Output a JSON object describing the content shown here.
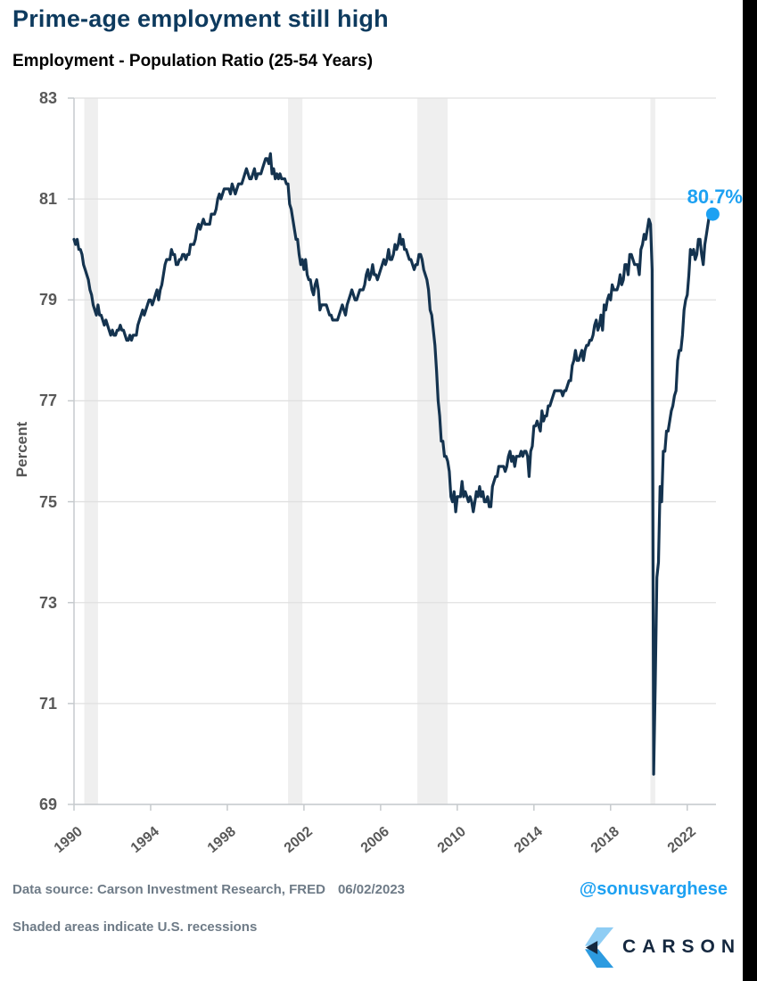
{
  "header": {
    "title": "Prime-age employment still high",
    "subtitle": "Employment - Population Ratio (25-54 Years)"
  },
  "chart_data": {
    "type": "line",
    "title": "Employment - Population Ratio (25-54 Years)",
    "xlabel": "",
    "ylabel": "Percent",
    "ylim": [
      69,
      83
    ],
    "xlim": [
      1990,
      2023.5
    ],
    "y_ticks": [
      69,
      71,
      73,
      75,
      77,
      79,
      81,
      83
    ],
    "x_ticks": [
      1990,
      1994,
      1998,
      2002,
      2006,
      2010,
      2014,
      2018,
      2022
    ],
    "grid": true,
    "legend": false,
    "series_name": "Employment - Population Ratio (25-54 Years), percent, monthly",
    "start_year": 1990,
    "frequency": "monthly",
    "values": [
      80.2,
      80.1,
      80.2,
      80.0,
      80.0,
      79.9,
      79.7,
      79.6,
      79.5,
      79.4,
      79.2,
      79.1,
      78.9,
      78.8,
      78.7,
      78.9,
      78.7,
      78.7,
      78.6,
      78.5,
      78.6,
      78.5,
      78.4,
      78.3,
      78.4,
      78.3,
      78.3,
      78.4,
      78.4,
      78.5,
      78.4,
      78.4,
      78.3,
      78.2,
      78.2,
      78.3,
      78.2,
      78.3,
      78.3,
      78.3,
      78.5,
      78.6,
      78.7,
      78.8,
      78.7,
      78.8,
      78.9,
      79.0,
      79.0,
      78.9,
      79.0,
      79.1,
      79.2,
      79.0,
      79.2,
      79.3,
      79.5,
      79.7,
      79.8,
      79.8,
      79.8,
      80.0,
      79.9,
      79.9,
      79.7,
      79.7,
      79.8,
      79.8,
      79.9,
      79.9,
      79.8,
      79.9,
      79.9,
      80.1,
      80.1,
      80.1,
      80.2,
      80.4,
      80.5,
      80.4,
      80.5,
      80.6,
      80.5,
      80.5,
      80.5,
      80.5,
      80.7,
      80.7,
      80.7,
      80.8,
      81.0,
      81.1,
      81.0,
      81.1,
      81.2,
      81.2,
      81.2,
      81.2,
      81.1,
      81.3,
      81.2,
      81.1,
      81.2,
      81.3,
      81.3,
      81.3,
      81.4,
      81.5,
      81.6,
      81.5,
      81.4,
      81.4,
      81.5,
      81.6,
      81.4,
      81.5,
      81.5,
      81.5,
      81.6,
      81.7,
      81.8,
      81.8,
      81.7,
      81.9,
      81.5,
      81.6,
      81.4,
      81.5,
      81.4,
      81.5,
      81.4,
      81.4,
      81.4,
      81.3,
      81.3,
      80.9,
      80.8,
      80.6,
      80.4,
      80.2,
      80.2,
      79.9,
      79.7,
      79.8,
      79.6,
      79.8,
      79.5,
      79.4,
      79.4,
      79.2,
      79.1,
      79.3,
      79.4,
      79.2,
      78.8,
      78.9,
      78.9,
      78.9,
      78.9,
      78.8,
      78.7,
      78.7,
      78.6,
      78.6,
      78.6,
      78.6,
      78.7,
      78.8,
      78.9,
      78.8,
      78.7,
      78.9,
      79.0,
      79.1,
      79.2,
      79.1,
      79.0,
      79.0,
      79.1,
      79.2,
      79.2,
      79.2,
      79.3,
      79.5,
      79.6,
      79.4,
      79.5,
      79.7,
      79.5,
      79.5,
      79.4,
      79.5,
      79.6,
      79.7,
      79.8,
      79.7,
      79.8,
      80.0,
      79.8,
      79.8,
      79.9,
      80.1,
      80.0,
      80.1,
      80.3,
      80.1,
      80.2,
      80.0,
      80.0,
      79.9,
      79.8,
      79.8,
      79.7,
      79.6,
      79.7,
      79.7,
      79.9,
      79.9,
      79.8,
      79.6,
      79.5,
      79.4,
      79.2,
      78.8,
      78.7,
      78.4,
      78.1,
      77.6,
      77.0,
      76.7,
      76.2,
      76.2,
      75.9,
      75.9,
      75.8,
      75.6,
      75.1,
      75.0,
      75.2,
      74.8,
      75.1,
      75.1,
      75.1,
      75.4,
      75.1,
      75.2,
      75.1,
      75.0,
      75.1,
      75.0,
      74.8,
      75.0,
      75.2,
      75.1,
      75.3,
      75.1,
      75.2,
      75.0,
      75.0,
      75.1,
      74.9,
      74.9,
      75.3,
      75.4,
      75.5,
      75.5,
      75.7,
      75.7,
      75.7,
      75.7,
      75.6,
      75.7,
      75.9,
      76.0,
      75.8,
      75.9,
      75.7,
      75.9,
      75.9,
      75.9,
      76.0,
      75.9,
      76.0,
      76.0,
      75.9,
      75.5,
      76.0,
      76.1,
      76.5,
      76.5,
      76.6,
      76.5,
      76.4,
      76.8,
      76.6,
      76.7,
      76.7,
      76.9,
      76.9,
      77.0,
      77.1,
      77.2,
      77.2,
      77.2,
      77.2,
      77.2,
      77.1,
      77.2,
      77.2,
      77.3,
      77.4,
      77.4,
      77.7,
      77.8,
      78.0,
      77.8,
      77.8,
      77.9,
      78.0,
      77.8,
      78.0,
      78.1,
      78.1,
      78.2,
      78.2,
      78.3,
      78.5,
      78.6,
      78.4,
      78.5,
      78.7,
      78.4,
      78.9,
      78.8,
      79.0,
      79.1,
      79.0,
      79.3,
      79.2,
      79.2,
      79.2,
      79.3,
      79.5,
      79.3,
      79.4,
      79.7,
      79.7,
      79.5,
      79.9,
      79.9,
      79.8,
      79.7,
      79.7,
      79.7,
      79.5,
      80.0,
      80.1,
      80.3,
      80.2,
      80.4,
      80.6,
      80.5,
      79.6,
      69.6,
      71.4,
      73.5,
      73.8,
      75.3,
      75.0,
      76.0,
      76.0,
      76.4,
      76.4,
      76.6,
      76.8,
      76.9,
      77.1,
      77.2,
      77.8,
      78.0,
      78.0,
      78.3,
      78.8,
      79.0,
      79.1,
      79.5,
      80.0,
      79.9,
      80.0,
      79.8,
      79.9,
      80.2,
      80.2,
      79.9,
      79.7,
      80.1,
      80.3,
      80.5,
      80.7,
      80.8,
      80.7
    ],
    "recessions": [
      [
        1990.54,
        1991.25
      ],
      [
        2001.17,
        2001.92
      ],
      [
        2007.92,
        2009.5
      ],
      [
        2020.08,
        2020.33
      ]
    ],
    "end_label": "80.7%",
    "end_value": 80.7,
    "line_color": "#14334f",
    "accent_color": "#1da1f2",
    "band_color": "#efefef",
    "grid_color": "#e0e0e0",
    "axis_color": "#c6cacd",
    "tick_label_color": "#595959"
  },
  "footer": {
    "source_label": "Data source: Carson Investment Research, FRED",
    "date": "06/02/2023",
    "note": "Shaded areas indicate U.S. recessions",
    "handle": "@sonusvarghese",
    "brand_name": "CARSON"
  }
}
